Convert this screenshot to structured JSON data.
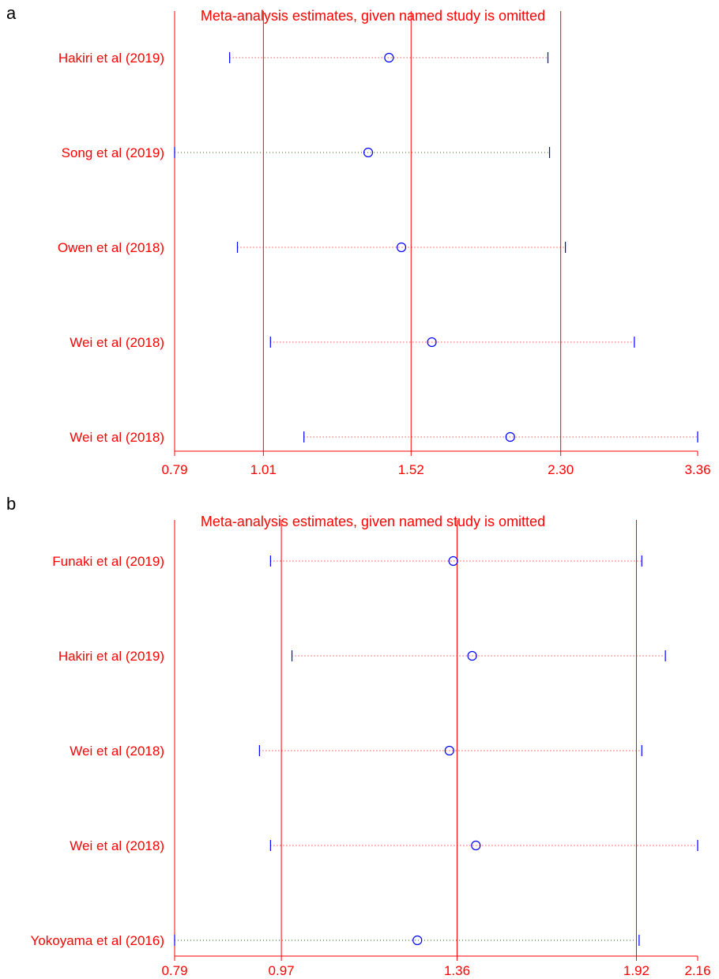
{
  "colors": {
    "axis": "#ff0000",
    "ci": "#0000ff",
    "point": "#0000ff",
    "dotted": "#ff0000",
    "panel_letter": "#000000"
  },
  "chart_data": [
    {
      "panel": "a",
      "type": "scatter",
      "title": "Meta-analysis estimates, given named study is omitted",
      "x_scale": "log",
      "xlim": [
        0.79,
        3.36
      ],
      "x_ticks": [
        "0.79",
        "1.01",
        "1.52",
        "2.30",
        "3.36"
      ],
      "reference_lines": [
        1.01,
        1.52,
        2.3
      ],
      "studies": [
        {
          "label": "Hakiri et al (2019)",
          "estimate": 1.43,
          "lower": 0.92,
          "upper": 2.22
        },
        {
          "label": "Song et al (2019)",
          "estimate": 1.35,
          "lower": 0.79,
          "upper": 2.23
        },
        {
          "label": "Owen et al (2018)",
          "estimate": 1.48,
          "lower": 0.94,
          "upper": 2.33
        },
        {
          "label": "Wei et al (2018)",
          "estimate": 1.61,
          "lower": 1.03,
          "upper": 2.82
        },
        {
          "label": "Wei et al (2018)",
          "estimate": 2.0,
          "lower": 1.13,
          "upper": 3.36
        }
      ]
    },
    {
      "panel": "b",
      "type": "scatter",
      "title": "Meta-analysis estimates, given named study is omitted",
      "x_scale": "log",
      "xlim": [
        0.79,
        2.16
      ],
      "x_ticks": [
        "0.79",
        "0.97",
        "1.36",
        "1.92",
        "2.16"
      ],
      "reference_lines": [
        0.97,
        1.36,
        1.92
      ],
      "studies": [
        {
          "label": "Funaki et al (2019)",
          "estimate": 1.35,
          "lower": 0.95,
          "upper": 1.94
        },
        {
          "label": "Hakiri et al (2019)",
          "estimate": 1.4,
          "lower": 0.99,
          "upper": 2.03
        },
        {
          "label": "Wei et al (2018)",
          "estimate": 1.34,
          "lower": 0.93,
          "upper": 1.94
        },
        {
          "label": "Wei et al (2018)",
          "estimate": 1.41,
          "lower": 0.95,
          "upper": 2.16
        },
        {
          "label": "Yokoyama et al (2016)",
          "estimate": 1.26,
          "lower": 0.79,
          "upper": 1.93
        }
      ]
    }
  ]
}
